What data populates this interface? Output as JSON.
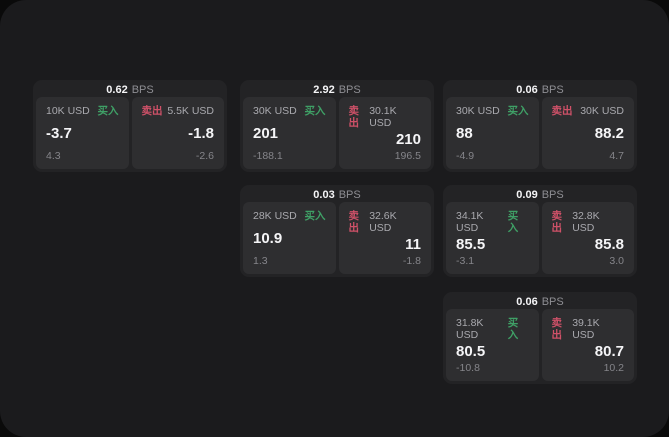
{
  "labels": {
    "bps_unit": "BPS",
    "buy": "买入",
    "sell": "卖出"
  },
  "colors": {
    "buy_accent": "#3fa066",
    "sell_accent": "#cf5168",
    "panel_bg": "#1b1b1d",
    "card_bg": "#232325",
    "subcard_bg": "#2e2e30"
  },
  "cards": [
    {
      "bps": "0.62",
      "row": 1,
      "col": 1,
      "buy": {
        "amount": "10K USD",
        "value": "-3.7",
        "delta": "4.3"
      },
      "sell": {
        "amount": "5.5K USD",
        "value": "-1.8",
        "delta": "-2.6"
      }
    },
    {
      "bps": "2.92",
      "row": 1,
      "col": 2,
      "buy": {
        "amount": "30K USD",
        "value": "201",
        "delta": "-188.1"
      },
      "sell": {
        "amount": "30.1K USD",
        "value": "210",
        "delta": "196.5"
      }
    },
    {
      "bps": "0.06",
      "row": 1,
      "col": 3,
      "buy": {
        "amount": "30K USD",
        "value": "88",
        "delta": "-4.9"
      },
      "sell": {
        "amount": "30K USD",
        "value": "88.2",
        "delta": "4.7"
      }
    },
    {
      "bps": "0.03",
      "row": 2,
      "col": 2,
      "buy": {
        "amount": "28K USD",
        "value": "10.9",
        "delta": "1.3"
      },
      "sell": {
        "amount": "32.6K USD",
        "value": "11",
        "delta": "-1.8"
      }
    },
    {
      "bps": "0.09",
      "row": 2,
      "col": 3,
      "buy": {
        "amount": "34.1K USD",
        "value": "85.5",
        "delta": "-3.1"
      },
      "sell": {
        "amount": "32.8K USD",
        "value": "85.8",
        "delta": "3.0"
      }
    },
    {
      "bps": "0.06",
      "row": 3,
      "col": 3,
      "buy": {
        "amount": "31.8K USD",
        "value": "80.5",
        "delta": "-10.8"
      },
      "sell": {
        "amount": "39.1K USD",
        "value": "80.7",
        "delta": "10.2"
      }
    }
  ]
}
